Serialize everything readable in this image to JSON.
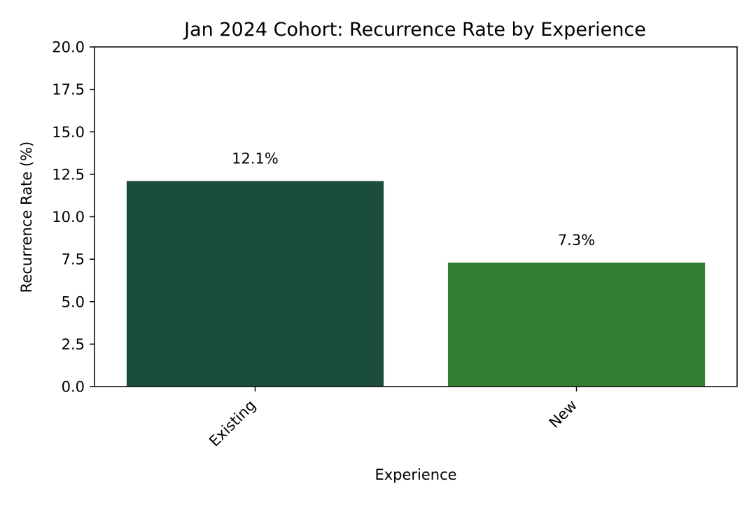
{
  "chart_data": {
    "type": "bar",
    "title": "Jan 2024 Cohort: Recurrence Rate by Experience",
    "xlabel": "Experience",
    "ylabel": "Recurrence Rate (%)",
    "categories": [
      "Existing",
      "New"
    ],
    "values": [
      12.1,
      7.3
    ],
    "data_labels": [
      "12.1%",
      "7.3%"
    ],
    "bar_colors": [
      "#1b4d3b",
      "#327e33"
    ],
    "ylim": [
      0,
      20
    ],
    "yticks": [
      0,
      2.5,
      5,
      7.5,
      10,
      12.5,
      15,
      17.5,
      20
    ],
    "ytick_labels": [
      "0.0",
      "2.5",
      "5.0",
      "7.5",
      "10.0",
      "12.5",
      "15.0",
      "17.5",
      "20.0"
    ],
    "grid": false,
    "legend": "none"
  }
}
